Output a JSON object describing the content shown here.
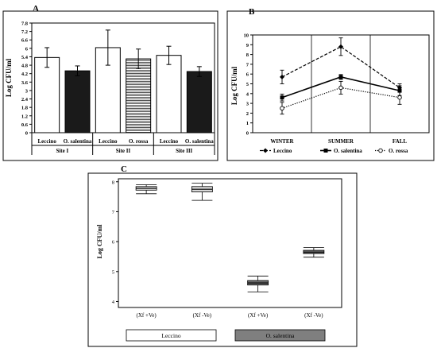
{
  "panel_labels": {
    "a": "A",
    "b": "B",
    "c": "C"
  },
  "chart_data": [
    {
      "id": "A",
      "type": "bar",
      "ylabel": "Log CFU/ml",
      "ylim": [
        0,
        7.8
      ],
      "yticks": [
        "0",
        "0.6",
        "1.2",
        "1.8",
        "2.4",
        "3",
        "3.6",
        "4.2",
        "4.8",
        "5.4",
        "6",
        "6.6",
        "7.2",
        "7.8"
      ],
      "grid": false,
      "groups": [
        {
          "site": "Site I",
          "bars": [
            {
              "label": "Leccino",
              "value": 5.35,
              "error": 0.7,
              "fill": "white"
            },
            {
              "label": "O. salentina",
              "value": 4.4,
              "error": 0.35,
              "fill": "black"
            }
          ]
        },
        {
          "site": "Site II",
          "bars": [
            {
              "label": "Leccino",
              "value": 6.05,
              "error": 1.25,
              "fill": "white"
            },
            {
              "label": "O. rossa",
              "value": 5.25,
              "error": 0.7,
              "fill": "hatched"
            }
          ]
        },
        {
          "site": "Site III",
          "bars": [
            {
              "label": "Leccino",
              "value": 5.5,
              "error": 0.65,
              "fill": "white"
            },
            {
              "label": "O. salentina",
              "value": 4.35,
              "error": 0.35,
              "fill": "black"
            }
          ]
        }
      ]
    },
    {
      "id": "B",
      "type": "line",
      "ylabel": "Log CFU/ml",
      "ylim": [
        0,
        10
      ],
      "yticks": [
        "0",
        "1",
        "2",
        "3",
        "4",
        "5",
        "6",
        "7",
        "8",
        "9",
        "10"
      ],
      "categories": [
        "WINTER",
        "SUMMER",
        "FALL"
      ],
      "series": [
        {
          "name": "Leccino",
          "values": [
            5.7,
            8.8,
            4.6
          ],
          "errors": [
            0.7,
            0.9,
            0.4
          ],
          "style": "dashed",
          "marker": "diamond"
        },
        {
          "name": "O. salentina",
          "values": [
            3.6,
            5.7,
            4.3
          ],
          "errors": [
            0.35,
            0.25,
            0.5
          ],
          "style": "solid",
          "marker": "square"
        },
        {
          "name": "O. rossa",
          "values": [
            2.5,
            4.6,
            3.6
          ],
          "errors": [
            0.6,
            0.65,
            0.7
          ],
          "style": "dotted",
          "marker": "circle"
        }
      ]
    },
    {
      "id": "C",
      "type": "box",
      "ylabel": "Log CFU/ml",
      "ylim": [
        3.8,
        8.1
      ],
      "yticks": [
        "4",
        "5",
        "6",
        "7",
        "8"
      ],
      "categories": [
        "(Xf +Ve)",
        "(Xf -Ve)",
        "(Xf +Ve)",
        "(Xf -Ve)"
      ],
      "boxes": [
        {
          "min": 7.6,
          "q1": 7.72,
          "median": 7.78,
          "q3": 7.84,
          "max": 7.9,
          "group": "Leccino"
        },
        {
          "min": 7.38,
          "q1": 7.66,
          "median": 7.75,
          "q3": 7.84,
          "max": 7.95,
          "group": "Leccino"
        },
        {
          "min": 4.32,
          "q1": 4.55,
          "median": 4.62,
          "q3": 4.7,
          "max": 4.85,
          "group": "O. salentina"
        },
        {
          "min": 5.48,
          "q1": 5.6,
          "median": 5.65,
          "q3": 5.71,
          "max": 5.8,
          "group": "O. salentina"
        }
      ],
      "legend": [
        {
          "name": "Leccino",
          "color": "#ffffff"
        },
        {
          "name": "O. salentina",
          "color": "#7f7f7f"
        }
      ]
    }
  ]
}
